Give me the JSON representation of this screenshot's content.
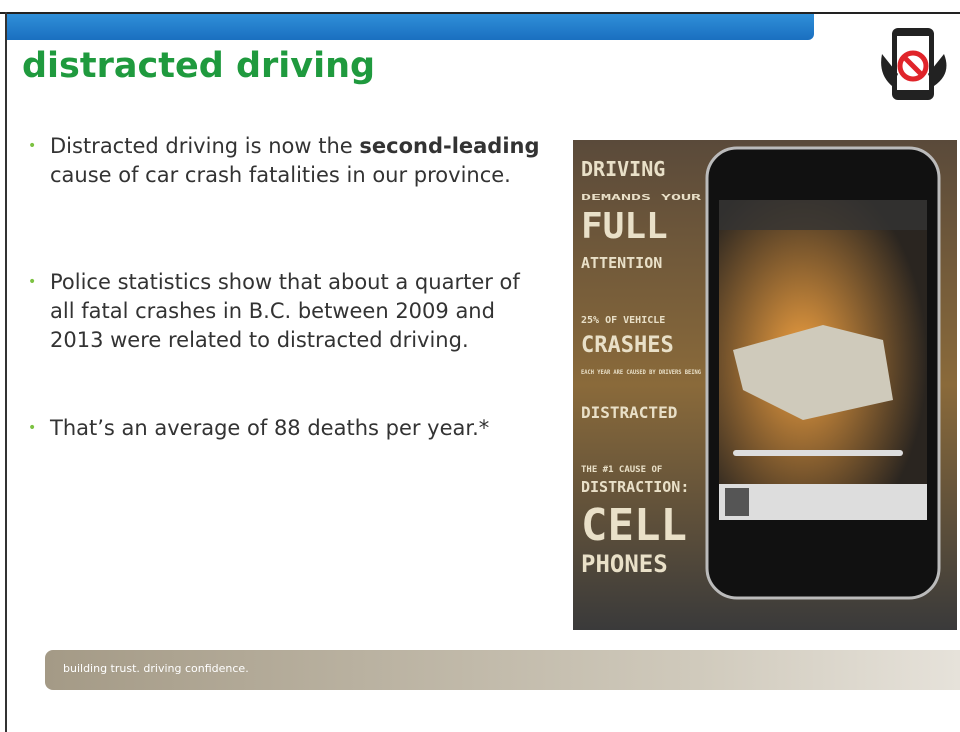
{
  "header": {
    "title": "distracted driving"
  },
  "bullets": [
    {
      "parts": [
        "Distracted driving is now the ",
        "second-leading",
        " cause of car crash fatalities in our province."
      ]
    },
    {
      "parts": [
        "Police statistics show that about a quarter of all fatal crashes in B.C. between 2009 and 2013 were related to distracted driving."
      ]
    },
    {
      "parts": [
        "That’s an average of 88 deaths per year.*"
      ]
    }
  ],
  "poster": {
    "lines": [
      "DRIVING",
      "DEMANDS YOUR",
      "FULL",
      "ATTENTION",
      "25% OF VEHICLE",
      "CRASHES",
      "EACH YEAR ARE CAUSED BY DRIVERS BEING",
      "DISTRACTED",
      "THE #1 CAUSE OF",
      "DISTRACTION:",
      "CELL",
      "PHONES"
    ]
  },
  "footer": {
    "tagline": "building trust. driving confidence."
  }
}
